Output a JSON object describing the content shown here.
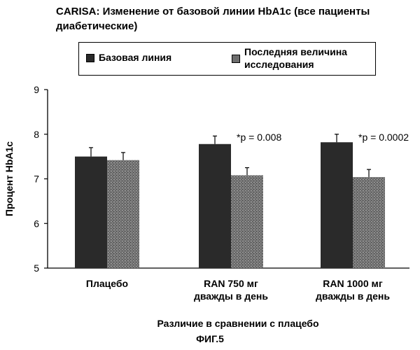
{
  "figure_label": "ФИГ.5",
  "chart_data": {
    "type": "bar",
    "title": "CARISA: Изменение от базовой линии HbA1c (все пациенты диабетические)",
    "xlabel": "Различие в сравнении с плацебо",
    "ylabel": "Процент HbA1c",
    "ylim": [
      5,
      9
    ],
    "yticks": [
      "5",
      "6",
      "7",
      "8",
      "9"
    ],
    "grid": false,
    "legend_position": "top",
    "categories": [
      [
        "Плацебо"
      ],
      [
        "RAN 750 мг",
        "дважды в день"
      ],
      [
        "RAN 1000 мг",
        "дважды в день"
      ]
    ],
    "series": [
      {
        "name": "Базовая линия",
        "values": [
          7.5,
          7.78,
          7.82
        ],
        "error": [
          0.2,
          0.18,
          0.18
        ],
        "color": "#2a2a2a"
      },
      {
        "name": "Последняя величина исследования",
        "values": [
          7.42,
          7.08,
          7.04
        ],
        "error": [
          0.17,
          0.17,
          0.17
        ],
        "color": "#6e6e6e"
      }
    ],
    "annotations": [
      "",
      "*p = 0.008",
      "*p = 0.0002"
    ]
  }
}
